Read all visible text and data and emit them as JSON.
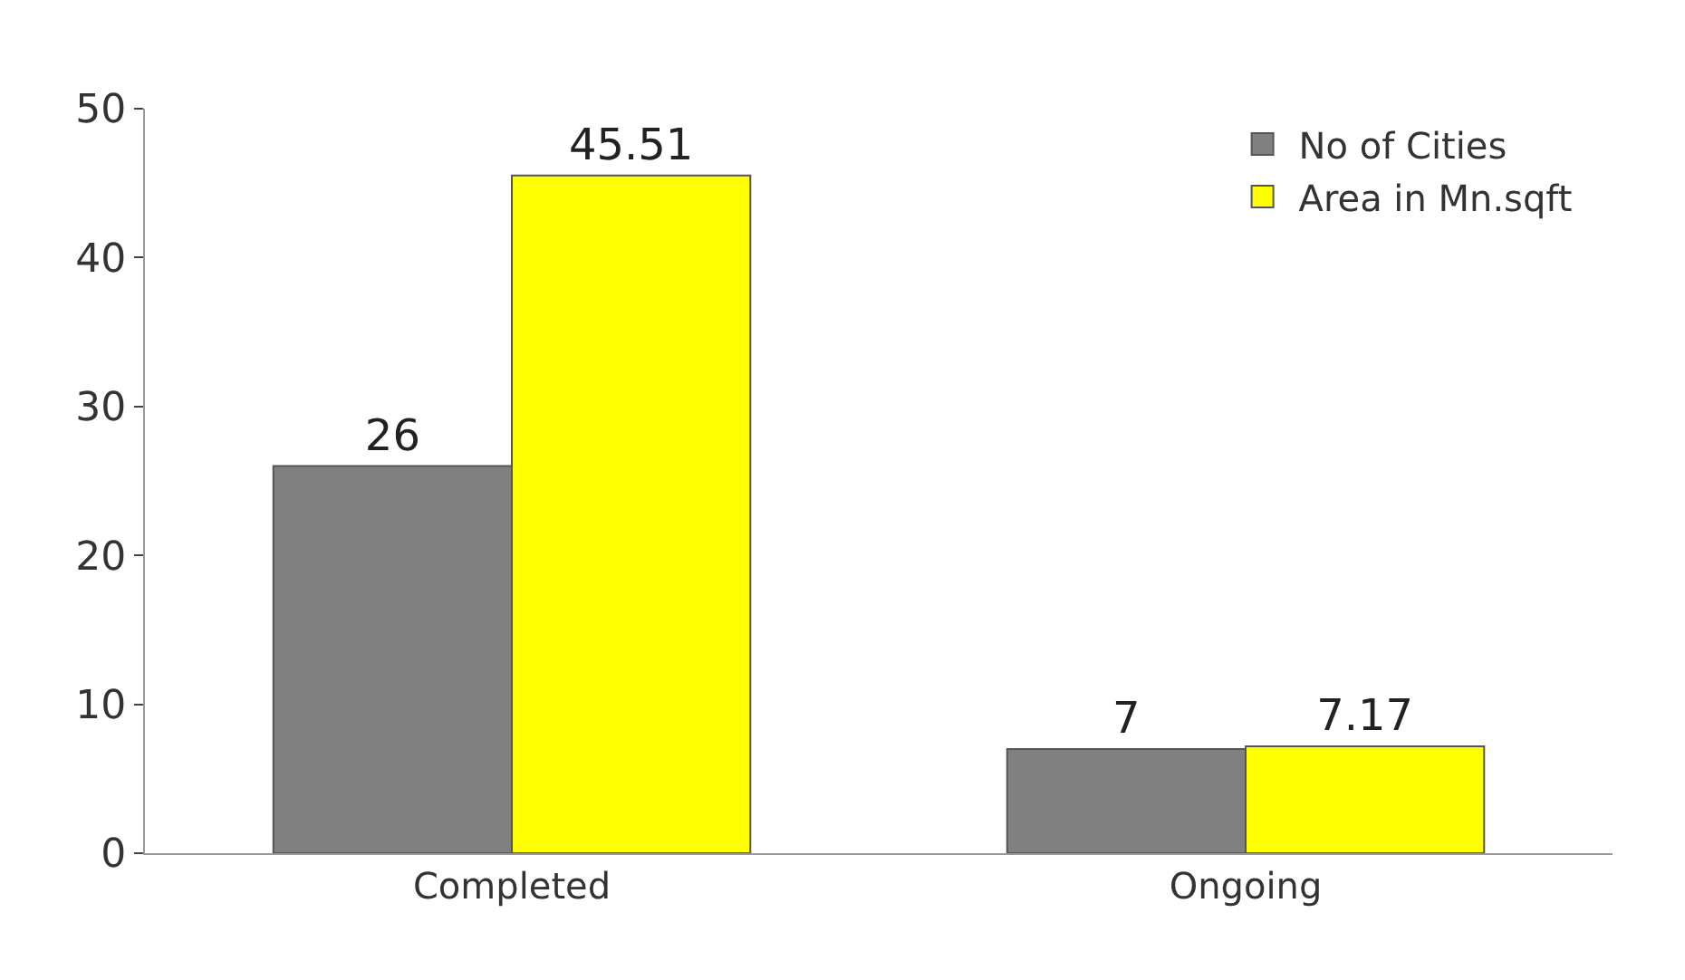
{
  "chart_data": {
    "type": "bar",
    "categories": [
      "Completed",
      "Ongoing"
    ],
    "series": [
      {
        "name": "No of Cities",
        "color": "#808080",
        "values": [
          26,
          7
        ]
      },
      {
        "name": "Area in Mn.sqft",
        "color": "#ffff00",
        "values": [
          45.51,
          7.17
        ]
      }
    ],
    "ylim": [
      0,
      50
    ],
    "yticks": [
      0,
      10,
      20,
      30,
      40,
      50
    ],
    "data_labels": true,
    "grid": false,
    "legend": "top right"
  }
}
